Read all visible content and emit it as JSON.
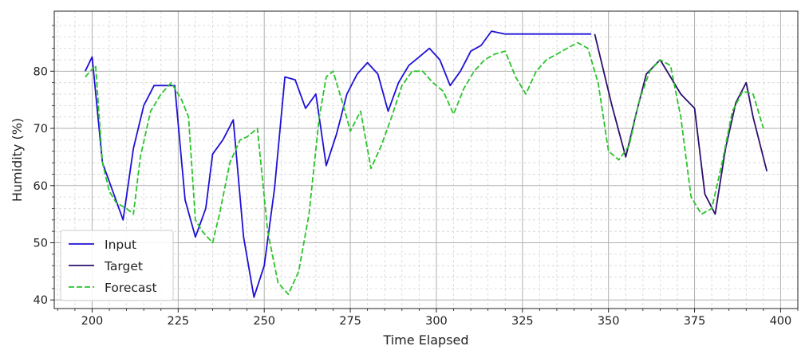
{
  "chart_data": {
    "type": "line",
    "xlabel": "Time Elapsed",
    "ylabel": "Humidity (%)",
    "xlim": [
      189,
      405
    ],
    "ylim": [
      38.5,
      90.5
    ],
    "xticks": [
      200,
      225,
      250,
      275,
      300,
      325,
      350,
      375,
      400
    ],
    "yticks": [
      40,
      50,
      60,
      70,
      80
    ],
    "grid": true,
    "minor_grid": true,
    "legend_position": "lower-left",
    "colors": {
      "input": "#1f10d6",
      "target": "#2c0f6e",
      "forecast": "#2bc42b"
    },
    "series": [
      {
        "name": "Input",
        "style": "solid",
        "x": [
          198,
          200,
          203,
          206,
          209,
          212,
          215,
          218,
          221,
          224,
          227,
          230,
          233,
          235,
          238,
          241,
          244,
          247,
          250,
          253,
          256,
          259,
          262,
          265,
          268,
          271,
          274,
          277,
          280,
          283,
          286,
          289,
          292,
          295,
          298,
          301,
          304,
          307,
          310,
          313,
          316,
          320,
          324,
          327,
          330,
          333,
          336,
          339,
          342,
          345
        ],
        "y": [
          80,
          82.5,
          64,
          59,
          54,
          66.5,
          74,
          77.5,
          77.5,
          77.5,
          57.5,
          51,
          56,
          65.5,
          68,
          71.5,
          51,
          40.5,
          46,
          59.5,
          79,
          78.5,
          73.5,
          76,
          63.5,
          69,
          76,
          79.5,
          81.5,
          79.5,
          73,
          78,
          81,
          82.5,
          84,
          82,
          77.5,
          80,
          83.5,
          84.5,
          87,
          86.5,
          86.5,
          86.5,
          86.5,
          86.5,
          86.5,
          86.5,
          86.5,
          86.5
        ]
      },
      {
        "name": "Target",
        "style": "solid",
        "x": [
          346,
          351,
          355,
          358,
          361,
          365,
          368,
          371,
          375,
          378,
          381,
          384,
          387,
          390,
          392,
          396
        ],
        "y": [
          86.5,
          74,
          65,
          72.5,
          79.5,
          82,
          79,
          76,
          73.5,
          58.5,
          55,
          66.5,
          74.5,
          78,
          72,
          62.5
        ]
      },
      {
        "name": "Forecast",
        "style": "dashed",
        "x": [
          198,
          201,
          203,
          205,
          207,
          210,
          212,
          214,
          217,
          220,
          223,
          226,
          228,
          230,
          232,
          235,
          237,
          240,
          243,
          245,
          248,
          251,
          254,
          257,
          260,
          263,
          266,
          268,
          270,
          273,
          275,
          278,
          281,
          284,
          287,
          290,
          293,
          296,
          299,
          302,
          305,
          308,
          311,
          314,
          317,
          320,
          323,
          326,
          329,
          332,
          335,
          338,
          341,
          344,
          347,
          350,
          353,
          356,
          359,
          362,
          365,
          368,
          371,
          374,
          377,
          380,
          383,
          386,
          389,
          392,
          395
        ],
        "y": [
          79,
          81,
          64,
          59,
          57,
          56,
          55,
          65,
          73,
          76,
          78,
          75,
          72,
          54,
          52,
          50,
          55,
          64,
          68,
          68.5,
          70,
          52,
          43,
          41,
          45,
          55,
          72,
          79,
          80,
          74,
          69.5,
          73,
          63,
          67,
          72,
          77.5,
          80,
          80,
          78,
          76.5,
          72.5,
          77,
          80,
          82,
          83,
          83.5,
          79,
          76,
          80,
          82,
          83,
          84,
          85,
          84,
          78,
          66,
          64.5,
          67,
          75,
          80,
          82,
          81,
          72,
          58,
          55,
          56,
          64,
          73,
          76.5,
          76,
          70
        ]
      }
    ]
  }
}
